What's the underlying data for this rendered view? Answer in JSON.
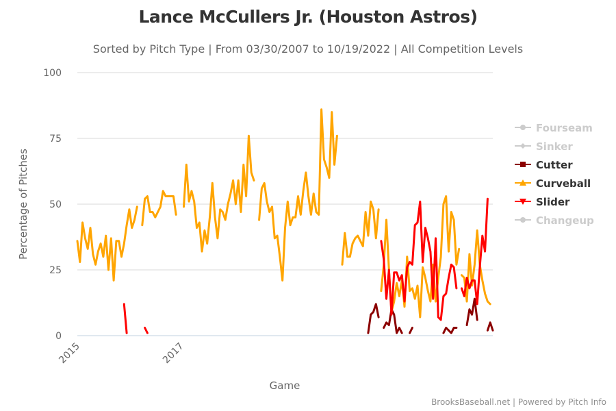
{
  "chart_data": {
    "type": "line",
    "title": "Lance McCullers Jr. (Houston Astros)",
    "subtitle": "Sorted by Pitch Type | From 03/30/2007 to 10/19/2022 | All Competition Levels",
    "xlabel": "Game",
    "ylabel": "Percentage of Pitches",
    "ylim": [
      0,
      100
    ],
    "xlim": [
      0,
      160
    ],
    "y_ticks": [
      "0",
      "25",
      "50",
      "75",
      "100"
    ],
    "y_tick_values": [
      0,
      25,
      50,
      75,
      100
    ],
    "x_ticks": [
      "2015",
      "2017"
    ],
    "x_tick_values": [
      0,
      40
    ],
    "grid": true,
    "legend_position": "right",
    "credits": "BrooksBaseball.net | Powered by Pitch Info",
    "series": [
      {
        "name": "Fourseam",
        "color": "#cccccc",
        "enabled": false,
        "marker": "circle",
        "points": []
      },
      {
        "name": "Sinker",
        "color": "#cccccc",
        "enabled": false,
        "marker": "diamond",
        "points": []
      },
      {
        "name": "Cutter",
        "color": "#8b0000",
        "enabled": true,
        "marker": "square",
        "points": [
          [
            112,
            1
          ],
          [
            113,
            8
          ],
          [
            114,
            9
          ],
          [
            115,
            12
          ],
          [
            116,
            7
          ],
          null,
          [
            118,
            3
          ],
          [
            119,
            5
          ],
          [
            120,
            4
          ],
          [
            121,
            10
          ],
          [
            122,
            8
          ],
          [
            123,
            1
          ],
          [
            124,
            3
          ],
          [
            125,
            1
          ],
          null,
          [
            128,
            1
          ],
          [
            129,
            3
          ],
          null,
          [
            141,
            1
          ],
          [
            142,
            3
          ],
          [
            143,
            2
          ],
          [
            144,
            1
          ],
          [
            145,
            3
          ],
          [
            146,
            3
          ],
          null,
          [
            150,
            4
          ],
          [
            151,
            10
          ],
          [
            152,
            8
          ],
          [
            153,
            14
          ],
          [
            154,
            6
          ],
          null,
          [
            158,
            2
          ],
          [
            159,
            5
          ],
          [
            160,
            2
          ]
        ]
      },
      {
        "name": "Curveball",
        "color": "#ffa500",
        "enabled": true,
        "marker": "triangle",
        "points": [
          [
            0,
            36
          ],
          [
            1,
            28
          ],
          [
            2,
            43
          ],
          [
            3,
            37
          ],
          [
            4,
            33
          ],
          [
            5,
            41
          ],
          [
            6,
            31
          ],
          [
            7,
            27
          ],
          [
            8,
            32
          ],
          [
            9,
            35
          ],
          [
            10,
            30
          ],
          [
            11,
            38
          ],
          [
            12,
            25
          ],
          [
            13,
            37
          ],
          [
            14,
            21
          ],
          [
            15,
            36
          ],
          [
            16,
            36
          ],
          [
            17,
            30
          ],
          [
            18,
            35
          ],
          [
            19,
            42
          ],
          [
            20,
            48
          ],
          [
            21,
            41
          ],
          [
            22,
            44
          ],
          [
            23,
            49
          ],
          null,
          [
            25,
            42
          ],
          [
            26,
            52
          ],
          [
            27,
            53
          ],
          [
            28,
            47
          ],
          [
            29,
            47
          ],
          [
            30,
            45
          ],
          [
            31,
            47
          ],
          [
            32,
            49
          ],
          [
            33,
            55
          ],
          [
            34,
            53
          ],
          [
            35,
            53
          ],
          [
            36,
            53
          ],
          [
            37,
            53
          ],
          [
            38,
            46
          ],
          null,
          [
            41,
            49
          ],
          [
            42,
            65
          ],
          [
            43,
            51
          ],
          [
            44,
            55
          ],
          [
            45,
            51
          ],
          [
            46,
            41
          ],
          [
            47,
            43
          ],
          [
            48,
            32
          ],
          [
            49,
            40
          ],
          [
            50,
            35
          ],
          [
            51,
            45
          ],
          [
            52,
            58
          ],
          [
            53,
            45
          ],
          [
            54,
            37
          ],
          [
            55,
            48
          ],
          [
            56,
            47
          ],
          [
            57,
            44
          ],
          [
            58,
            50
          ],
          [
            59,
            54
          ],
          [
            60,
            59
          ],
          [
            61,
            50
          ],
          [
            62,
            59
          ],
          [
            63,
            47
          ],
          [
            64,
            65
          ],
          [
            65,
            53
          ],
          [
            66,
            76
          ],
          [
            67,
            62
          ],
          [
            68,
            59
          ],
          null,
          [
            70,
            44
          ],
          [
            71,
            56
          ],
          [
            72,
            58
          ],
          [
            73,
            51
          ],
          [
            74,
            47
          ],
          [
            75,
            49
          ],
          [
            76,
            37
          ],
          [
            77,
            38
          ],
          [
            78,
            30
          ],
          [
            79,
            21
          ],
          [
            80,
            41
          ],
          [
            81,
            51
          ],
          [
            82,
            42
          ],
          [
            83,
            45
          ],
          [
            84,
            45
          ],
          [
            85,
            53
          ],
          [
            86,
            46
          ],
          [
            87,
            55
          ],
          [
            88,
            62
          ],
          [
            89,
            53
          ],
          [
            90,
            46
          ],
          [
            91,
            54
          ],
          [
            92,
            47
          ],
          [
            93,
            46
          ],
          [
            94,
            86
          ],
          [
            95,
            67
          ],
          [
            96,
            64
          ],
          [
            97,
            60
          ],
          [
            98,
            85
          ],
          [
            99,
            65
          ],
          [
            100,
            76
          ],
          null,
          [
            102,
            27
          ],
          [
            103,
            39
          ],
          [
            104,
            30
          ],
          [
            105,
            30
          ],
          [
            106,
            35
          ],
          [
            107,
            37
          ],
          [
            108,
            38
          ],
          [
            109,
            36
          ],
          [
            110,
            34
          ],
          [
            111,
            47
          ],
          [
            112,
            38
          ],
          [
            113,
            51
          ],
          [
            114,
            48
          ],
          [
            115,
            37
          ],
          [
            116,
            48
          ],
          null,
          [
            117,
            17
          ],
          [
            118,
            27
          ],
          [
            119,
            44
          ],
          [
            120,
            25
          ],
          [
            121,
            9
          ],
          [
            122,
            13
          ],
          [
            123,
            20
          ],
          [
            124,
            15
          ],
          [
            125,
            21
          ],
          [
            126,
            11
          ],
          [
            127,
            30
          ],
          [
            128,
            17
          ],
          [
            129,
            18
          ],
          [
            130,
            14
          ],
          [
            131,
            19
          ],
          [
            132,
            7
          ],
          [
            133,
            26
          ],
          [
            134,
            22
          ],
          [
            135,
            17
          ],
          [
            136,
            13
          ],
          [
            137,
            27
          ],
          [
            138,
            13
          ],
          [
            139,
            22
          ],
          [
            140,
            30
          ],
          [
            141,
            50
          ],
          [
            142,
            53
          ],
          [
            143,
            32
          ],
          [
            144,
            47
          ],
          [
            145,
            44
          ],
          [
            146,
            27
          ],
          [
            147,
            33
          ],
          null,
          [
            148,
            23
          ],
          [
            149,
            22
          ],
          [
            150,
            13
          ],
          [
            151,
            31
          ],
          [
            152,
            19
          ],
          [
            153,
            27
          ],
          [
            154,
            40
          ],
          [
            155,
            27
          ],
          [
            156,
            21
          ],
          [
            157,
            16
          ],
          [
            158,
            13
          ],
          [
            159,
            12
          ]
        ]
      },
      {
        "name": "Slider",
        "color": "#ff0000",
        "enabled": true,
        "marker": "triangle-down",
        "points": [
          [
            18,
            12
          ],
          [
            19,
            1
          ],
          null,
          [
            26,
            3
          ],
          [
            27,
            1
          ],
          null,
          [
            117,
            36
          ],
          [
            118,
            29
          ],
          [
            119,
            14
          ],
          [
            120,
            25
          ],
          [
            121,
            8
          ],
          [
            122,
            24
          ],
          [
            123,
            24
          ],
          [
            124,
            21
          ],
          [
            125,
            23
          ],
          [
            126,
            13
          ],
          [
            127,
            26
          ],
          [
            128,
            28
          ],
          [
            129,
            27
          ],
          [
            130,
            42
          ],
          [
            131,
            43
          ],
          [
            132,
            51
          ],
          [
            133,
            28
          ],
          [
            134,
            41
          ],
          [
            135,
            37
          ],
          [
            136,
            32
          ],
          [
            137,
            14
          ],
          [
            138,
            37
          ],
          [
            139,
            7
          ],
          [
            140,
            6
          ],
          [
            141,
            15
          ],
          [
            142,
            16
          ],
          [
            143,
            22
          ],
          [
            144,
            27
          ],
          [
            145,
            26
          ],
          [
            146,
            18
          ],
          null,
          [
            148,
            18
          ],
          [
            149,
            15
          ],
          [
            150,
            22
          ],
          [
            151,
            18
          ],
          [
            152,
            21
          ],
          [
            153,
            21
          ],
          [
            154,
            12
          ],
          [
            155,
            26
          ],
          [
            156,
            38
          ],
          [
            157,
            32
          ],
          [
            158,
            52
          ]
        ]
      },
      {
        "name": "Changeup",
        "color": "#cccccc",
        "enabled": false,
        "marker": "circle",
        "points": []
      }
    ]
  }
}
